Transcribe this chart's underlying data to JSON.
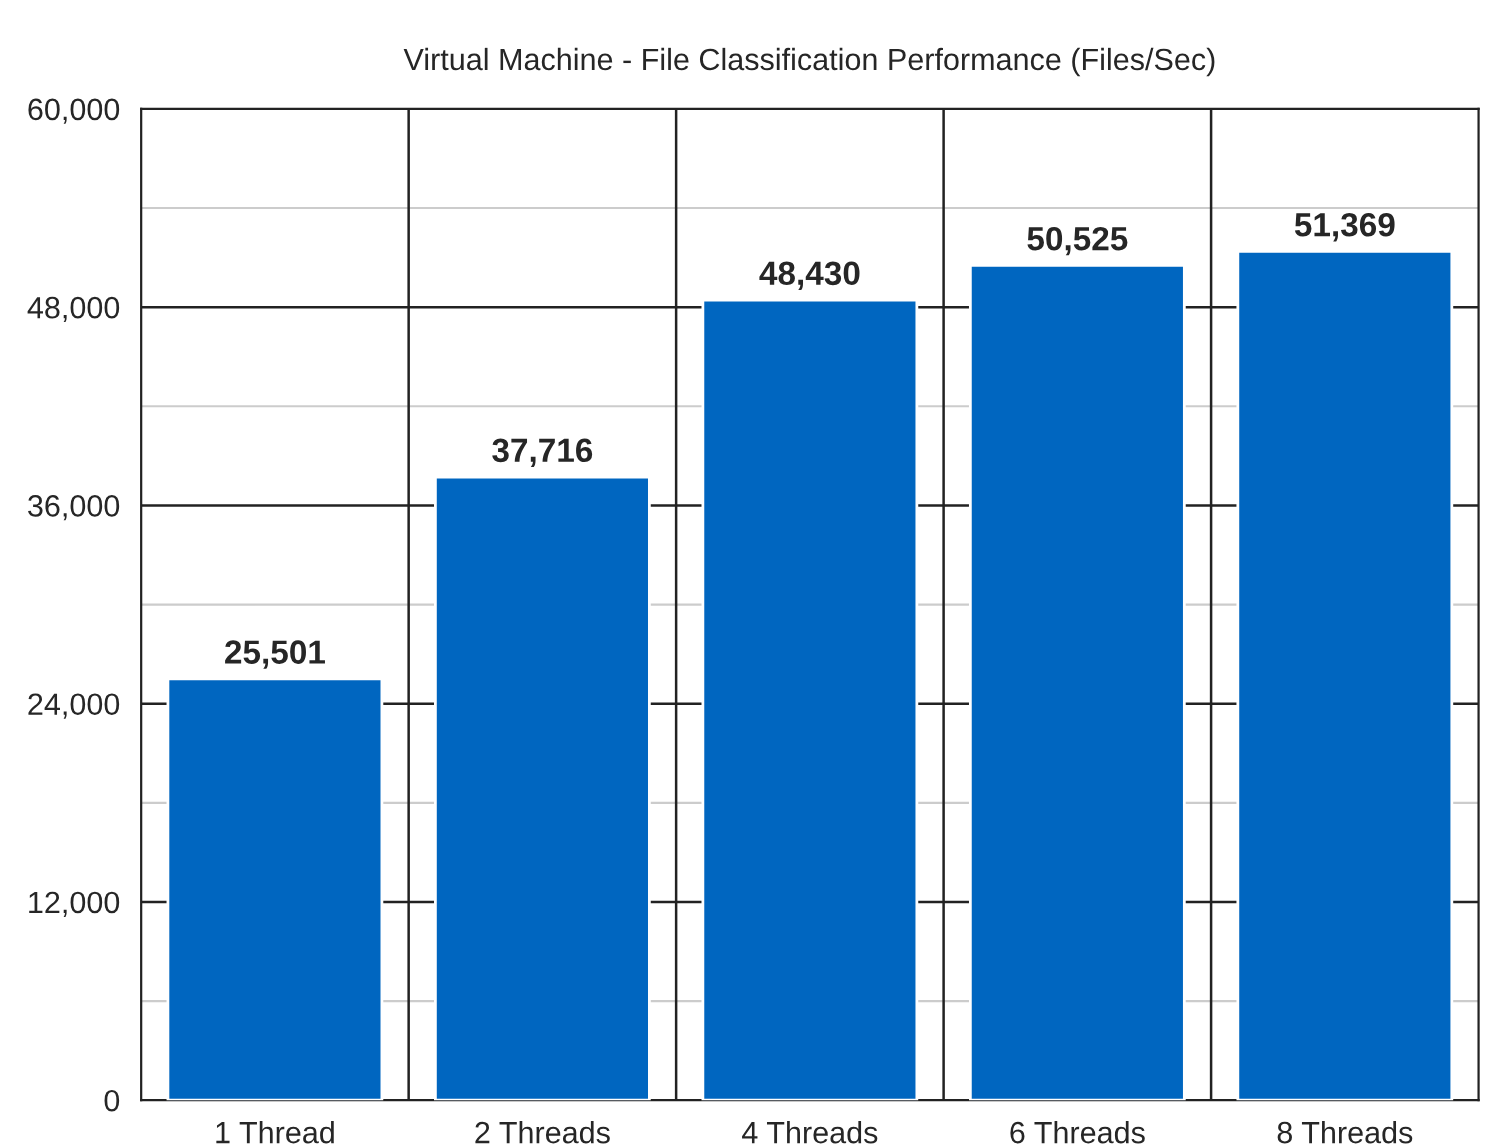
{
  "chart_data": {
    "type": "bar",
    "title": "Virtual Machine - File Classification Performance (Files/Sec)",
    "categories": [
      "1 Thread",
      "2 Threads",
      "4 Threads",
      "6 Threads",
      "8 Threads"
    ],
    "values": [
      25501,
      37716,
      48430,
      50525,
      51369
    ],
    "color": "#0066c0",
    "ylim": [
      0,
      60000
    ],
    "yticks": [
      {
        "value": 0,
        "label": "0"
      },
      {
        "value": 6000,
        "label": null
      },
      {
        "value": 12000,
        "label": "12,000"
      },
      {
        "value": 18000,
        "label": null
      },
      {
        "value": 24000,
        "label": "24,000"
      },
      {
        "value": 30000,
        "label": null
      },
      {
        "value": 36000,
        "label": "36,000"
      },
      {
        "value": 42000,
        "label": null
      },
      {
        "value": 48000,
        "label": "48,000"
      },
      {
        "value": 54000,
        "label": null
      },
      {
        "value": 60000,
        "label": "60,000"
      }
    ],
    "value_labels": [
      "25,501",
      "37,716",
      "48,430",
      "50,525",
      "51,369"
    ],
    "grid": true
  }
}
